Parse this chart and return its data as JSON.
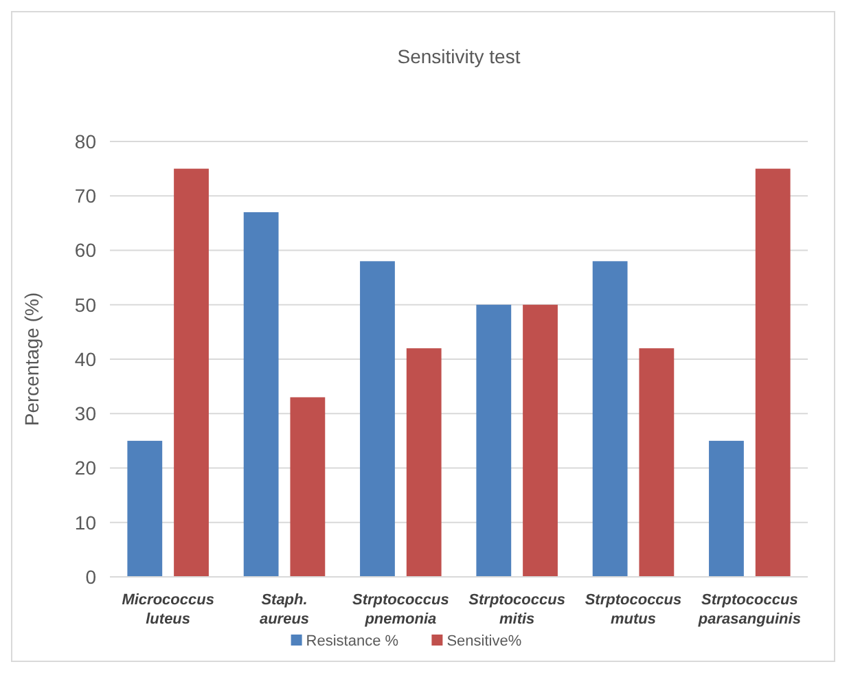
{
  "chart_data": {
    "type": "bar",
    "title": "Sensitivity test",
    "ylabel": "Percentage (%)",
    "categories": [
      "Micrococcus luteus",
      "Staph. aureus",
      "Strptococcus pnemonia",
      "Strptococcus mitis",
      "Strptococcus mutus",
      "Strptococcus parasanguinis"
    ],
    "series": [
      {
        "name": "Resistance %",
        "color": "#4f81bd",
        "values": [
          25,
          67,
          58,
          50,
          58,
          25
        ]
      },
      {
        "name": "Sensitive%",
        "color": "#c0504d",
        "values": [
          75,
          33,
          42,
          50,
          42,
          75
        ]
      }
    ],
    "ylim": [
      0,
      80
    ],
    "yticks": [
      0,
      10,
      20,
      30,
      40,
      50,
      60,
      70,
      80
    ],
    "grid": "y",
    "legend": "bottom"
  }
}
